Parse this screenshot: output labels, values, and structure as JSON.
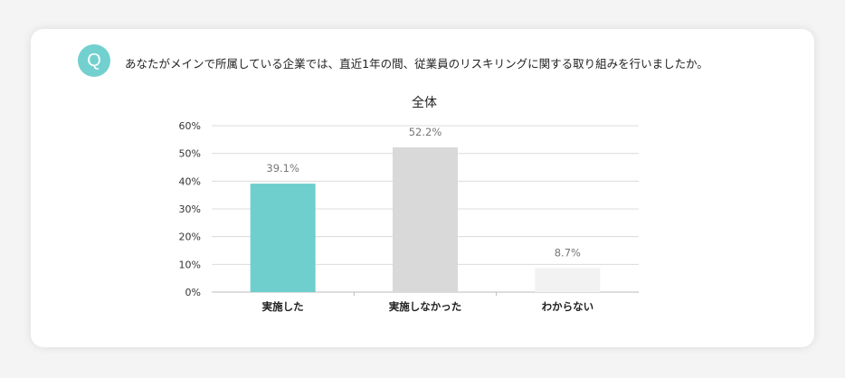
{
  "question": {
    "badge": "Q",
    "text": "あなたがメインで所属している企業では、直近1年の間、従業員のリスキリングに関する取り組みを行いましたか。"
  },
  "chart_data": {
    "type": "bar",
    "title": "全体",
    "categories": [
      "実施した",
      "実施しなかった",
      "わからない"
    ],
    "values": [
      39.1,
      52.2,
      8.7
    ],
    "value_labels": [
      "39.1%",
      "52.2%",
      "8.7%"
    ],
    "colors": [
      "#6ecfcd",
      "#d9d9d9",
      "#f2f2f2"
    ],
    "ylim": [
      0,
      60
    ],
    "yticks": [
      0,
      10,
      20,
      30,
      40,
      50,
      60
    ],
    "ytick_labels": [
      "0%",
      "10%",
      "20%",
      "30%",
      "40%",
      "50%",
      "60%"
    ],
    "grid": true,
    "legend": "none"
  }
}
